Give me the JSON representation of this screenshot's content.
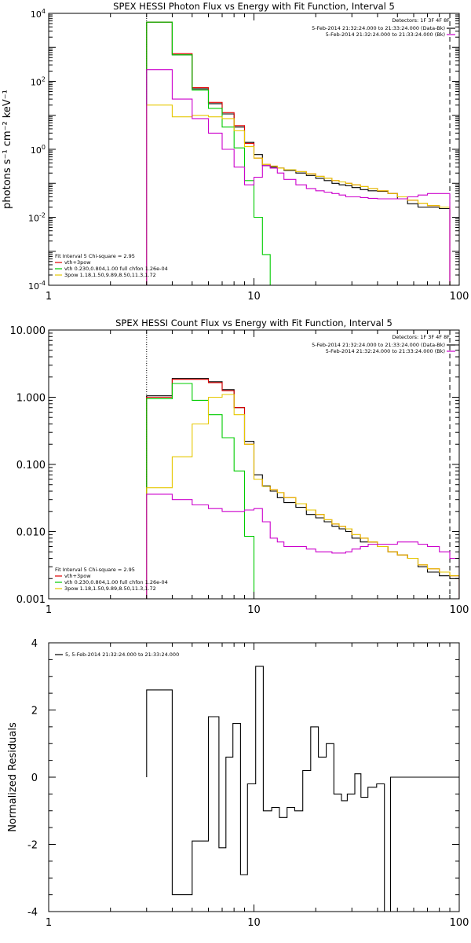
{
  "chart_data": [
    {
      "type": "line",
      "title": "SPEX HESSI Photon Flux vs Energy with Fit Function, Interval 5",
      "ylabel": "photons s⁻¹ cm⁻² keV⁻¹",
      "xlabel": "",
      "xscale": "log",
      "yscale": "log",
      "xlim": [
        1,
        100
      ],
      "ylim": [
        0.0001,
        10000
      ],
      "x_ticks": [
        "1",
        "10",
        "100"
      ],
      "y_ticks": [
        "10^-4",
        "10^-2",
        "10^0",
        "10^2",
        "10^4"
      ],
      "detectors": "Detectors: 1F 3F 4F 8F",
      "legend_tr": [
        {
          "label": "5-Feb-2014 21:32:24.000 to 21:33:24.000 (Data-Bk)",
          "color": "#000000"
        },
        {
          "label": "5-Feb-2014 21:32:24.000 to 21:33:24.000 (Bk)",
          "color": "#cc00cc"
        }
      ],
      "fit_title": "Fit Interval 5   Chi-square = 2.95",
      "legend_bl": [
        {
          "label": "vth+3pow",
          "color": "#e00000"
        },
        {
          "label": "vth 0.230,0.804,1.00  full chfon 1.26e-04",
          "color": "#00cc00"
        },
        {
          "label": "3pow 1.18,1.50,9.89,8.50,11.3,1.72",
          "color": "#e6c800"
        }
      ],
      "vlines": [
        {
          "x": 3.0,
          "style": "dotted"
        },
        {
          "x": 90,
          "style": "dashed"
        }
      ],
      "series": [
        {
          "name": "Data-Bk",
          "color": "#000000",
          "edges": [
            3,
            4,
            5,
            6,
            7,
            8,
            9,
            10,
            11,
            12,
            13,
            14,
            16,
            18,
            20,
            22,
            24,
            26,
            28,
            30,
            33,
            36,
            40,
            45,
            50,
            56,
            63,
            70,
            80,
            90
          ],
          "values": [
            5500,
            600,
            60,
            22,
            11,
            4.5,
            1.6,
            0.7,
            0.33,
            0.3,
            0.28,
            0.24,
            0.2,
            0.17,
            0.14,
            0.12,
            0.1,
            0.09,
            0.085,
            0.075,
            0.065,
            0.06,
            0.058,
            0.05,
            0.035,
            0.025,
            0.02,
            0.02,
            0.018
          ]
        },
        {
          "name": "vth+3pow",
          "color": "#e00000",
          "edges": [
            3,
            4,
            5,
            6,
            7,
            8,
            9,
            10,
            11,
            12,
            13,
            14,
            16,
            18,
            20,
            22,
            24,
            26,
            28,
            30,
            33,
            36,
            40,
            45,
            50,
            56,
            63,
            70,
            80,
            90
          ],
          "values": [
            5500,
            650,
            65,
            24,
            12,
            5,
            1.5,
            0.55,
            0.36,
            0.32,
            0.28,
            0.25,
            0.22,
            0.19,
            0.16,
            0.14,
            0.12,
            0.11,
            0.1,
            0.09,
            0.08,
            0.07,
            0.06,
            0.05,
            0.04,
            0.032,
            0.026,
            0.022,
            0.02
          ]
        },
        {
          "name": "vth",
          "color": "#00cc00",
          "edges": [
            3,
            4,
            5,
            6,
            7,
            8,
            9,
            10,
            11,
            12,
            13
          ],
          "values": [
            5500,
            600,
            55,
            16,
            4.5,
            1.1,
            0.12,
            0.01,
            0.0008,
            0.0001
          ]
        },
        {
          "name": "3pow",
          "color": "#e6c800",
          "edges": [
            3,
            4,
            5,
            6,
            7,
            8,
            9,
            10,
            11,
            12,
            13,
            14,
            16,
            18,
            20,
            22,
            24,
            26,
            28,
            30,
            33,
            36,
            40,
            45,
            50,
            56,
            63,
            70,
            80,
            90
          ],
          "values": [
            20,
            9,
            10,
            9,
            8,
            3.5,
            1.2,
            0.55,
            0.36,
            0.32,
            0.28,
            0.25,
            0.22,
            0.19,
            0.16,
            0.14,
            0.12,
            0.11,
            0.1,
            0.09,
            0.08,
            0.07,
            0.06,
            0.05,
            0.04,
            0.032,
            0.026,
            0.022,
            0.02
          ]
        },
        {
          "name": "Bk",
          "color": "#cc00cc",
          "edges": [
            3,
            4,
            5,
            6,
            7,
            8,
            9,
            10,
            11,
            12,
            13,
            14,
            16,
            18,
            20,
            22,
            24,
            26,
            28,
            30,
            33,
            36,
            40,
            45,
            50,
            56,
            63,
            70,
            80,
            90
          ],
          "values": [
            220,
            30,
            8,
            3,
            1,
            0.3,
            0.09,
            0.15,
            0.33,
            0.28,
            0.2,
            0.13,
            0.09,
            0.07,
            0.06,
            0.055,
            0.05,
            0.045,
            0.04,
            0.04,
            0.038,
            0.036,
            0.035,
            0.035,
            0.035,
            0.04,
            0.045,
            0.05,
            0.05
          ]
        }
      ]
    },
    {
      "type": "line",
      "title": "SPEX HESSI Count Flux vs Energy with Fit Function, Interval 5",
      "xlabel": "",
      "ylabel": "",
      "xscale": "log",
      "yscale": "log",
      "xlim": [
        1,
        100
      ],
      "ylim": [
        0.001,
        10
      ],
      "x_ticks": [
        "1",
        "10",
        "100"
      ],
      "y_ticks": [
        "0.001",
        "0.010",
        "0.100",
        "1.000",
        "10.000"
      ],
      "detectors": "Detectors: 1F 3F 4F 8F",
      "legend_tr": [
        {
          "label": "5-Feb-2014 21:32:24.000 to 21:33:24.000 (Data-Bk)",
          "color": "#000000"
        },
        {
          "label": "5-Feb-2014 21:32:24.000 to 21:33:24.000 (Bk)",
          "color": "#cc00cc"
        }
      ],
      "fit_title": "Fit Interval 5   Chi-square = 2.95",
      "legend_bl": [
        {
          "label": "vth+3pow",
          "color": "#e00000"
        },
        {
          "label": "vth 0.230,0.804,1.00  full chfon 1.26e-04",
          "color": "#00cc00"
        },
        {
          "label": "3pow 1.18,1.50,9.89,8.50,11.3,1.72",
          "color": "#e6c800"
        }
      ],
      "vlines": [
        {
          "x": 3.0,
          "style": "dotted"
        },
        {
          "x": 90,
          "style": "dashed"
        }
      ],
      "series": [
        {
          "name": "Data-Bk",
          "color": "#000000",
          "edges": [
            3,
            4,
            5,
            6,
            7,
            8,
            9,
            10,
            11,
            12,
            13,
            14,
            16,
            18,
            20,
            22,
            24,
            26,
            28,
            30,
            33,
            36,
            40,
            45,
            50,
            56,
            63,
            70,
            80,
            90,
            100
          ],
          "values": [
            1.05,
            1.9,
            1.9,
            1.7,
            1.3,
            0.7,
            0.22,
            0.07,
            0.048,
            0.04,
            0.032,
            0.027,
            0.023,
            0.018,
            0.016,
            0.014,
            0.012,
            0.011,
            0.01,
            0.008,
            0.007,
            0.007,
            0.006,
            0.005,
            0.0045,
            0.004,
            0.003,
            0.0025,
            0.0022,
            0.002
          ]
        },
        {
          "name": "vth+3pow",
          "color": "#e00000",
          "edges": [
            3,
            4,
            5,
            6,
            7,
            8,
            9,
            10,
            11,
            12,
            13,
            14,
            16,
            18,
            20,
            22,
            24,
            26,
            28,
            30,
            33,
            36,
            40,
            45,
            50,
            56,
            63,
            70,
            80,
            90,
            100
          ],
          "values": [
            1.0,
            1.85,
            1.85,
            1.65,
            1.25,
            0.7,
            0.2,
            0.06,
            0.047,
            0.042,
            0.038,
            0.032,
            0.026,
            0.021,
            0.018,
            0.015,
            0.013,
            0.012,
            0.011,
            0.009,
            0.008,
            0.007,
            0.006,
            0.005,
            0.0045,
            0.004,
            0.0032,
            0.0028,
            0.0025,
            0.0022
          ]
        },
        {
          "name": "vth",
          "color": "#00cc00",
          "edges": [
            3,
            4,
            5,
            6,
            7,
            8,
            9,
            10
          ],
          "values": [
            0.95,
            1.6,
            0.9,
            0.55,
            0.25,
            0.08,
            0.0085,
            0.0009
          ]
        },
        {
          "name": "3pow",
          "color": "#e6c800",
          "edges": [
            3,
            4,
            5,
            6,
            7,
            8,
            9,
            10,
            11,
            12,
            13,
            14,
            16,
            18,
            20,
            22,
            24,
            26,
            28,
            30,
            33,
            36,
            40,
            45,
            50,
            56,
            63,
            70,
            80,
            90,
            100
          ],
          "values": [
            0.045,
            0.13,
            0.4,
            1.0,
            1.1,
            0.55,
            0.2,
            0.06,
            0.047,
            0.042,
            0.038,
            0.032,
            0.026,
            0.021,
            0.018,
            0.015,
            0.013,
            0.012,
            0.011,
            0.009,
            0.008,
            0.007,
            0.006,
            0.005,
            0.0045,
            0.004,
            0.0032,
            0.0028,
            0.0025,
            0.0022
          ]
        },
        {
          "name": "Bk",
          "color": "#cc00cc",
          "edges": [
            3,
            4,
            5,
            6,
            7,
            8,
            9,
            10,
            11,
            12,
            13,
            14,
            16,
            18,
            20,
            22,
            24,
            26,
            28,
            30,
            33,
            36,
            40,
            45,
            50,
            56,
            63,
            70,
            80,
            90,
            100
          ],
          "values": [
            0.036,
            0.03,
            0.025,
            0.022,
            0.02,
            0.02,
            0.021,
            0.022,
            0.014,
            0.008,
            0.007,
            0.006,
            0.006,
            0.0055,
            0.005,
            0.005,
            0.0048,
            0.0048,
            0.005,
            0.0055,
            0.006,
            0.0065,
            0.0065,
            0.0065,
            0.007,
            0.007,
            0.0065,
            0.006,
            0.005,
            0.004
          ]
        }
      ]
    },
    {
      "type": "line",
      "title": "",
      "xlabel": "",
      "ylabel": "Normalized Residuals",
      "xscale": "log",
      "yscale": "linear",
      "xlim": [
        1,
        100
      ],
      "ylim": [
        -4,
        4
      ],
      "x_ticks": [
        "1",
        "10",
        "100"
      ],
      "y_ticks": [
        "-4",
        "-2",
        "0",
        "2",
        "4"
      ],
      "legend_tl": [
        {
          "label": "5,  5-Feb-2014 21:32:24.000 to 21:33:24.000",
          "color": "#000000"
        }
      ],
      "series": [
        {
          "name": "residuals",
          "color": "#000000",
          "edges": [
            3,
            3.45,
            4,
            5,
            6,
            6.75,
            7.3,
            7.9,
            8.6,
            9.3,
            10.2,
            11.1,
            12.2,
            13.3,
            14.5,
            15.8,
            17.3,
            18.9,
            20.6,
            22.5,
            24.5,
            26.7,
            28.5,
            31,
            33.2,
            35.9,
            39.6,
            43.2,
            46.3,
            49.7,
            55,
            60,
            67,
            73,
            83,
            93,
            101
          ],
          "values": [
            2.6,
            2.6,
            -3.5,
            -1.9,
            1.8,
            -2.1,
            0.6,
            1.6,
            -2.9,
            -0.2,
            3.3,
            -1.0,
            -0.9,
            -1.2,
            -0.9,
            -1.0,
            0.2,
            1.5,
            0.6,
            1.0,
            -0.5,
            -0.7,
            -0.5,
            0.1,
            -0.6,
            -0.3,
            -0.2,
            -4.0,
            0,
            0,
            0,
            0,
            0,
            0,
            0,
            0
          ]
        }
      ]
    }
  ]
}
